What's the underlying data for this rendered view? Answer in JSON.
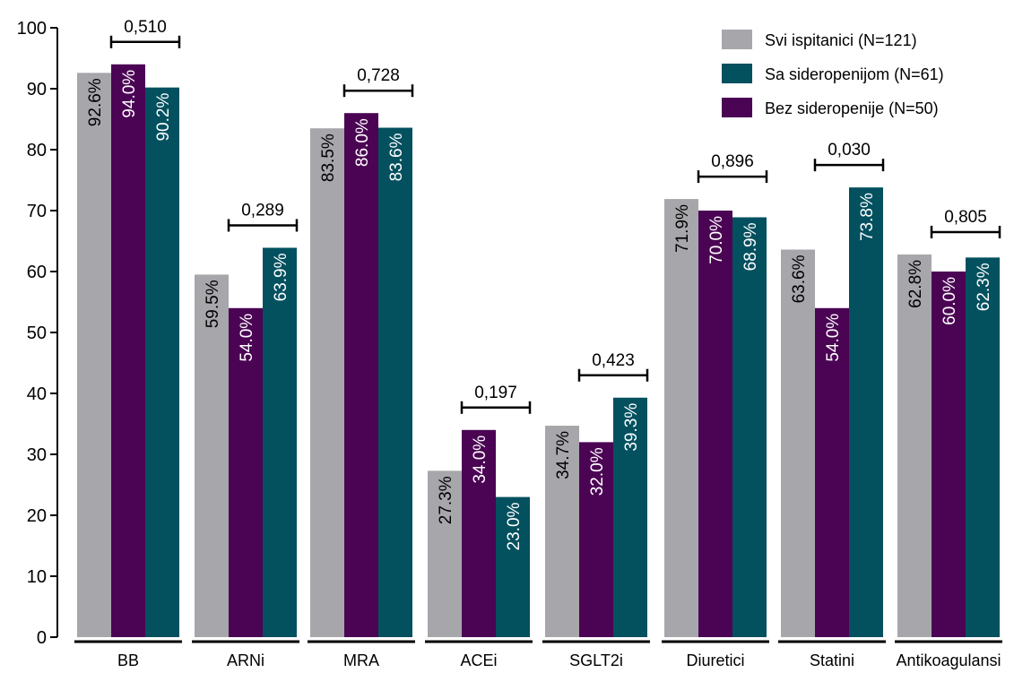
{
  "chart_data": {
    "type": "bar",
    "title": "",
    "xlabel": "",
    "ylabel": "",
    "ylim": [
      0,
      100
    ],
    "yticks": [
      0,
      10,
      20,
      30,
      40,
      50,
      60,
      70,
      80,
      90,
      100
    ],
    "grid": false,
    "legend_position": "top-right",
    "categories": [
      "BB",
      "ARNi",
      "MRA",
      "ACEi",
      "SGLT2i",
      "Diuretici",
      "Statini",
      "Antikoagulansi"
    ],
    "series": [
      {
        "name": "Svi ispitanici (N=121)",
        "color": "#a7a6ab",
        "label_color": "#000000",
        "values": [
          92.6,
          59.5,
          83.5,
          27.3,
          34.7,
          71.9,
          63.6,
          62.8
        ],
        "labels": [
          "92.6%",
          "59.5%",
          "83.5%",
          "27.3%",
          "34.7%",
          "71.9%",
          "63.6%",
          "62.8%"
        ]
      },
      {
        "name": "Bez sideropenije (N=50)",
        "color": "#4b0454",
        "label_color": "#ffffff",
        "values": [
          94.0,
          54.0,
          86.0,
          34.0,
          32.0,
          70.0,
          54.0,
          60.0
        ],
        "labels": [
          "94.0%",
          "54.0%",
          "86.0%",
          "34.0%",
          "32.0%",
          "70.0%",
          "54.0%",
          "60.0%"
        ]
      },
      {
        "name": "Sa sideropenijom (N=61)",
        "color": "#03505f",
        "label_color": "#ffffff",
        "values": [
          90.2,
          63.9,
          83.6,
          23.0,
          39.3,
          68.9,
          73.8,
          62.3
        ],
        "labels": [
          "90.2%",
          "63.9%",
          "83.6%",
          "23.0%",
          "39.3%",
          "68.9%",
          "73.8%",
          "62.3%"
        ]
      }
    ],
    "legend_order": [
      "Svi ispitanici (N=121)",
      "Sa sideropenijom (N=61)",
      "Bez sideropenije (N=50)"
    ],
    "p_values": [
      "0,510",
      "0,289",
      "0,728",
      "0,197",
      "0,423",
      "0,896",
      "0,030",
      "0,805"
    ]
  }
}
